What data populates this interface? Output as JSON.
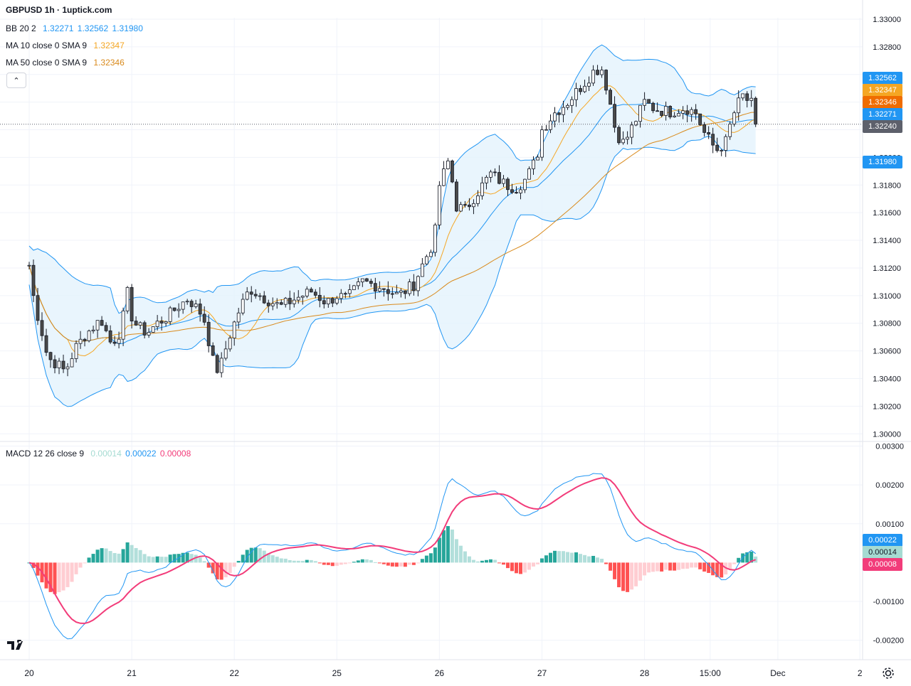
{
  "header": {
    "title": "GBPUSD 1h · 1uptick.com"
  },
  "legend": {
    "bb": {
      "name": "BB 20 2",
      "basis": "1.32271",
      "upper": "1.32562",
      "lower": "1.31980"
    },
    "ma10": {
      "name": "MA 10 close 0 SMA 9",
      "value": "1.32347"
    },
    "ma50": {
      "name": "MA 50 close 0 SMA 9",
      "value": "1.32346"
    },
    "macd": {
      "name": "MACD 12 26 close 9",
      "hist": "0.00014",
      "macd": "0.00022",
      "signal": "0.00008"
    }
  },
  "price_tags": [
    {
      "value": "1.32562",
      "color": "#2196f3"
    },
    {
      "value": "1.32347",
      "color": "#f5a623"
    },
    {
      "value": "1.32346",
      "color": "#ef6c00"
    },
    {
      "value": "1.32271",
      "color": "#2196f3"
    },
    {
      "value": "1.32240",
      "color": "#5d606b"
    },
    {
      "value": "1.31980",
      "color": "#2196f3"
    }
  ],
  "macd_tags": [
    {
      "value": "0.00022",
      "color": "#2196f3"
    },
    {
      "value": "0.00014",
      "color": "#a5dbd2"
    },
    {
      "value": "0.00008",
      "color": "#f23c7a"
    }
  ],
  "colors": {
    "up": "#ffffff",
    "down": "#4a4a4a",
    "wick": "#131722",
    "bb_band": "#2196f3",
    "bb_fill": "#e3f2fd",
    "ma10": "#f5a623",
    "ma50": "#d98a1c",
    "macd": "#2196f3",
    "signal": "#f23c7a",
    "hist_up_strong": "#26a69a",
    "hist_up_weak": "#b2dfdb",
    "hist_dn_strong": "#ff5252",
    "hist_dn_weak": "#ffcdd2"
  },
  "icons": {
    "logo": "tradingview-logo-icon",
    "settings": "gear-icon",
    "collapse": "chevron-up-icon"
  },
  "chart_data": [
    {
      "type": "candlestick",
      "symbol": "GBPUSD",
      "interval": "1h",
      "ylim": [
        1.2995,
        1.3301
      ],
      "yticks": [
        "1.33000",
        "1.32800",
        "1.32600",
        "1.32400",
        "1.32200",
        "1.32000",
        "1.31800",
        "1.31600",
        "1.31400",
        "1.31200",
        "1.31000",
        "1.30800",
        "1.30600",
        "1.30400",
        "1.30200",
        "1.30000"
      ],
      "xticks": [
        {
          "label": "20",
          "t": 0
        },
        {
          "label": "21",
          "t": 1
        },
        {
          "label": "22",
          "t": 2
        },
        {
          "label": "25",
          "t": 3
        },
        {
          "label": "26",
          "t": 4
        },
        {
          "label": "27",
          "t": 5
        },
        {
          "label": "28",
          "t": 6
        },
        {
          "label": "15:00",
          "t": 6.64
        },
        {
          "label": "Dec",
          "t": 7.3
        },
        {
          "label": "2",
          "t": 8.1
        }
      ],
      "close_anchors": [
        [
          0,
          1.3122
        ],
        [
          0.05,
          1.3095
        ],
        [
          0.12,
          1.3075
        ],
        [
          0.18,
          1.3055
        ],
        [
          0.28,
          1.305
        ],
        [
          0.35,
          1.3045
        ],
        [
          0.45,
          1.3062
        ],
        [
          0.55,
          1.3072
        ],
        [
          0.7,
          1.3083
        ],
        [
          0.8,
          1.3065
        ],
        [
          0.9,
          1.3075
        ],
        [
          0.95,
          1.3105
        ],
        [
          1.0,
          1.3085
        ],
        [
          1.05,
          1.3078
        ],
        [
          1.15,
          1.3073
        ],
        [
          1.25,
          1.308
        ],
        [
          1.35,
          1.3085
        ],
        [
          1.45,
          1.3092
        ],
        [
          1.55,
          1.3098
        ],
        [
          1.7,
          1.3085
        ],
        [
          1.8,
          1.305
        ],
        [
          1.85,
          1.3045
        ],
        [
          1.95,
          1.307
        ],
        [
          2.05,
          1.309
        ],
        [
          2.15,
          1.3105
        ],
        [
          2.3,
          1.3098
        ],
        [
          2.45,
          1.3092
        ],
        [
          2.6,
          1.3098
        ],
        [
          2.75,
          1.3103
        ],
        [
          2.9,
          1.3095
        ],
        [
          3.0,
          1.31
        ],
        [
          3.1,
          1.3098
        ],
        [
          3.25,
          1.311
        ],
        [
          3.45,
          1.3106
        ],
        [
          3.6,
          1.31
        ],
        [
          3.75,
          1.3108
        ],
        [
          3.85,
          1.3125
        ],
        [
          3.95,
          1.314
        ],
        [
          4.0,
          1.318
        ],
        [
          4.1,
          1.32
        ],
        [
          4.15,
          1.3165
        ],
        [
          4.25,
          1.3162
        ],
        [
          4.4,
          1.3178
        ],
        [
          4.5,
          1.3188
        ],
        [
          4.65,
          1.318
        ],
        [
          4.75,
          1.3178
        ],
        [
          4.85,
          1.3185
        ],
        [
          4.95,
          1.32
        ],
        [
          5.0,
          1.322
        ],
        [
          5.12,
          1.3232
        ],
        [
          5.25,
          1.324
        ],
        [
          5.4,
          1.3253
        ],
        [
          5.5,
          1.3262
        ],
        [
          5.58,
          1.3265
        ],
        [
          5.65,
          1.3245
        ],
        [
          5.72,
          1.3218
        ],
        [
          5.8,
          1.321
        ],
        [
          5.9,
          1.3225
        ],
        [
          6.0,
          1.324
        ],
        [
          6.1,
          1.3235
        ],
        [
          6.25,
          1.3233
        ],
        [
          6.4,
          1.3236
        ],
        [
          6.5,
          1.3232
        ],
        [
          6.58,
          1.3218
        ],
        [
          6.7,
          1.3205
        ],
        [
          6.8,
          1.3212
        ],
        [
          6.85,
          1.3228
        ],
        [
          6.95,
          1.3245
        ],
        [
          7.05,
          1.3238
        ],
        [
          7.12,
          1.3224
        ]
      ],
      "moving_averages": [
        {
          "name": "MA 10 close 0 SMA 9",
          "value": 1.32347
        },
        {
          "name": "MA 50 close 0 SMA 9",
          "value": 1.32346
        }
      ],
      "bollinger": {
        "name": "BB 20 2",
        "basis": 1.32271,
        "upper": 1.32562,
        "lower": 1.3198
      },
      "last_price": 1.3224
    },
    {
      "type": "macd",
      "name": "MACD 12 26 close 9",
      "ylim": [
        -0.0025,
        0.0031
      ],
      "yticks": [
        "0.00300",
        "0.00200",
        "0.00100",
        "-0.00100",
        "-0.00200"
      ],
      "last": {
        "histogram": 0.00014,
        "macd": 0.00022,
        "signal": 8e-05
      }
    }
  ]
}
